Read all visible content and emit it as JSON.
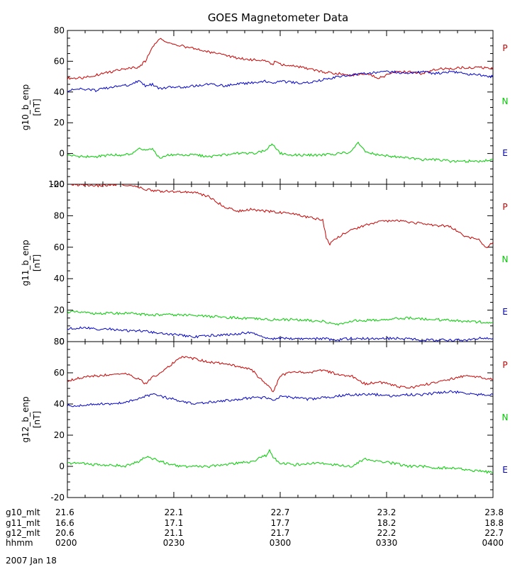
{
  "chart_data": {
    "type": "line",
    "title": "GOES Magnetometer Data",
    "date": "2007 Jan 18",
    "panels": [
      {
        "ylabel_top": "g10_b_enp",
        "ylabel_bottom": "[nT]",
        "ylim": [
          -20,
          80
        ],
        "yticks": [
          -20,
          0,
          20,
          40,
          60,
          80
        ],
        "ytick_labels": [
          "-20",
          "0",
          "20",
          "40",
          "60",
          "80"
        ],
        "legend": [
          "P",
          "N",
          "E"
        ],
        "series": [
          {
            "name": "P",
            "color": "#cc0000",
            "x": [
              0,
              2,
              4,
              6,
              8,
              10,
              11,
              12,
              13,
              14,
              15,
              16,
              18,
              20,
              22,
              24,
              26,
              28,
              29,
              29.2,
              30,
              32,
              34,
              36,
              38,
              40,
              42,
              44,
              46,
              48,
              50,
              52,
              54,
              56,
              58,
              60
            ],
            "values": [
              49,
              49,
              51,
              53,
              55,
              56,
              60,
              69,
              75,
              72,
              71,
              70,
              68,
              66,
              64,
              62,
              61,
              60,
              58,
              60,
              58,
              57,
              55,
              53,
              52,
              51,
              52,
              49,
              53,
              53,
              52,
              55,
              55,
              56,
              56,
              55
            ]
          },
          {
            "name": "N",
            "color": "#00cc00",
            "x": [
              0,
              2,
              4,
              6,
              8,
              9,
              10,
              11,
              12,
              13,
              14,
              16,
              18,
              20,
              22,
              24,
              26,
              28,
              28.5,
              29,
              30,
              32,
              34,
              36,
              38,
              40,
              41,
              42,
              44,
              46,
              48,
              50,
              52,
              54,
              56,
              58,
              60
            ],
            "values": [
              -1,
              -2,
              -2,
              -1,
              -1,
              0,
              3,
              2,
              3,
              -3,
              -1,
              -1,
              -1,
              -2,
              -1,
              0,
              0,
              2,
              5,
              6,
              0,
              -1,
              -1,
              -1,
              0,
              1,
              7,
              1,
              -1,
              -2,
              -3,
              -4,
              -4,
              -5,
              -5,
              -5,
              -4
            ]
          },
          {
            "name": "E",
            "color": "#0000cc",
            "x": [
              0,
              2,
              4,
              6,
              8,
              9,
              10,
              11,
              12,
              13,
              14,
              16,
              18,
              20,
              22,
              24,
              26,
              28,
              29,
              30,
              32,
              34,
              36,
              38,
              40,
              42,
              44,
              46,
              48,
              50,
              52,
              54,
              56,
              58,
              60
            ],
            "values": [
              41,
              42,
              41,
              43,
              44,
              45,
              47,
              44,
              45,
              42,
              43,
              43,
              44,
              45,
              44,
              45,
              46,
              47,
              45,
              47,
              46,
              46,
              48,
              50,
              51,
              52,
              53,
              53,
              52,
              53,
              52,
              53,
              52,
              51,
              50
            ]
          }
        ]
      },
      {
        "ylabel_top": "g11_b_enp",
        "ylabel_bottom": "[nT]",
        "ylim": [
          0,
          100
        ],
        "yticks": [
          0,
          20,
          40,
          60,
          80,
          100
        ],
        "ytick_labels": [
          "0",
          "20",
          "40",
          "60",
          "80",
          "100"
        ],
        "legend": [
          "P",
          "N",
          "E"
        ],
        "series": [
          {
            "name": "P",
            "color": "#cc0000",
            "x": [
              0,
              4,
              8,
              10,
              12,
              16,
              18,
              20,
              22,
              24,
              26,
              28,
              30,
              32,
              34,
              36,
              36.5,
              37,
              38,
              40,
              42,
              44,
              46,
              48,
              50,
              52,
              54,
              56,
              58,
              59,
              60
            ],
            "values": [
              100,
              99,
              100,
              98,
              96,
              95,
              95,
              92,
              86,
              83,
              84,
              83,
              82,
              81,
              79,
              77,
              66,
              62,
              66,
              71,
              74,
              76,
              77,
              76,
              75,
              74,
              73,
              67,
              65,
              60,
              63
            ]
          },
          {
            "name": "N",
            "color": "#00cc00",
            "x": [
              0,
              4,
              8,
              12,
              16,
              20,
              24,
              28,
              32,
              36,
              38,
              40,
              44,
              48,
              52,
              56,
              60
            ],
            "values": [
              19,
              18,
              18,
              17,
              17,
              16,
              15,
              14,
              14,
              13,
              11,
              13,
              14,
              15,
              14,
              13,
              12
            ]
          },
          {
            "name": "E",
            "color": "#0000cc",
            "x": [
              0,
              2,
              4,
              6,
              8,
              10,
              12,
              14,
              16,
              18,
              20,
              22,
              24,
              26,
              27,
              28,
              30,
              32,
              34,
              36,
              38,
              40,
              42,
              44,
              46,
              48,
              50,
              52,
              54,
              56,
              58,
              60
            ],
            "values": [
              8,
              9,
              8,
              8,
              7,
              7,
              6,
              5,
              4,
              3,
              4,
              4,
              5,
              6,
              4,
              2,
              2,
              2,
              2,
              2,
              1,
              2,
              2,
              2,
              2,
              2,
              1,
              1,
              1,
              1,
              2,
              2
            ]
          }
        ]
      },
      {
        "ylabel_top": "g12_b_enp",
        "ylabel_bottom": "[nT]",
        "ylim": [
          -20,
          80
        ],
        "yticks": [
          -20,
          0,
          20,
          40,
          60,
          80
        ],
        "ytick_labels": [
          "-20",
          "0",
          "20",
          "40",
          "60",
          "80"
        ],
        "legend": [
          "P",
          "N",
          "E"
        ],
        "series": [
          {
            "name": "P",
            "color": "#cc0000",
            "x": [
              0,
              2,
              4,
              6,
              8,
              10,
              11,
              12,
              14,
              16,
              18,
              20,
              22,
              24,
              26,
              27,
              28,
              29,
              30,
              32,
              34,
              36,
              38,
              40,
              42,
              44,
              46,
              48,
              50,
              52,
              54,
              56,
              58,
              60
            ],
            "values": [
              55,
              57,
              58,
              59,
              60,
              56,
              53,
              57,
              63,
              70,
              69,
              67,
              66,
              64,
              62,
              57,
              53,
              48,
              58,
              61,
              60,
              62,
              59,
              58,
              53,
              54,
              52,
              50,
              52,
              54,
              56,
              58,
              57,
              56
            ]
          },
          {
            "name": "N",
            "color": "#00cc00",
            "x": [
              0,
              2,
              4,
              6,
              8,
              10,
              11,
              12,
              14,
              16,
              18,
              20,
              22,
              24,
              26,
              27,
              28,
              28.5,
              29,
              30,
              32,
              34,
              36,
              38,
              40,
              42,
              44,
              46,
              48,
              50,
              52,
              54,
              56,
              58,
              60
            ],
            "values": [
              2,
              2,
              1,
              1,
              0,
              3,
              6,
              5,
              2,
              0,
              0,
              0,
              1,
              2,
              3,
              5,
              7,
              11,
              6,
              2,
              1,
              2,
              2,
              1,
              0,
              5,
              3,
              2,
              0,
              0,
              -1,
              -1,
              -2,
              -3,
              -4
            ]
          },
          {
            "name": "E",
            "color": "#0000cc",
            "x": [
              0,
              2,
              4,
              6,
              8,
              10,
              11,
              12,
              14,
              16,
              18,
              20,
              22,
              24,
              26,
              28,
              29,
              30,
              32,
              34,
              36,
              38,
              40,
              42,
              44,
              46,
              48,
              50,
              52,
              54,
              56,
              58,
              60
            ],
            "values": [
              39,
              39,
              40,
              40,
              41,
              43,
              45,
              46,
              44,
              42,
              40,
              41,
              42,
              43,
              44,
              44,
              42,
              45,
              44,
              43,
              44,
              45,
              46,
              46,
              46,
              45,
              46,
              46,
              47,
              48,
              47,
              46,
              46
            ]
          }
        ]
      }
    ],
    "xlim": [
      0,
      60
    ],
    "xticks": [
      0,
      15,
      30,
      45,
      60
    ],
    "footer_rows": [
      {
        "label": "g10_mlt",
        "values": [
          "21.6",
          "22.1",
          "22.7",
          "23.2",
          "23.8"
        ]
      },
      {
        "label": "g11_mlt",
        "values": [
          "16.6",
          "17.1",
          "17.7",
          "18.2",
          "18.8"
        ]
      },
      {
        "label": "g12_mlt",
        "values": [
          "20.6",
          "21.1",
          "21.7",
          "22.2",
          "22.7"
        ]
      },
      {
        "label": "hhmm",
        "values": [
          "0200",
          "0230",
          "0300",
          "0330",
          "0400"
        ]
      }
    ]
  },
  "colors": {
    "P": "#cc0000",
    "N": "#00cc00",
    "E": "#0000cc"
  }
}
